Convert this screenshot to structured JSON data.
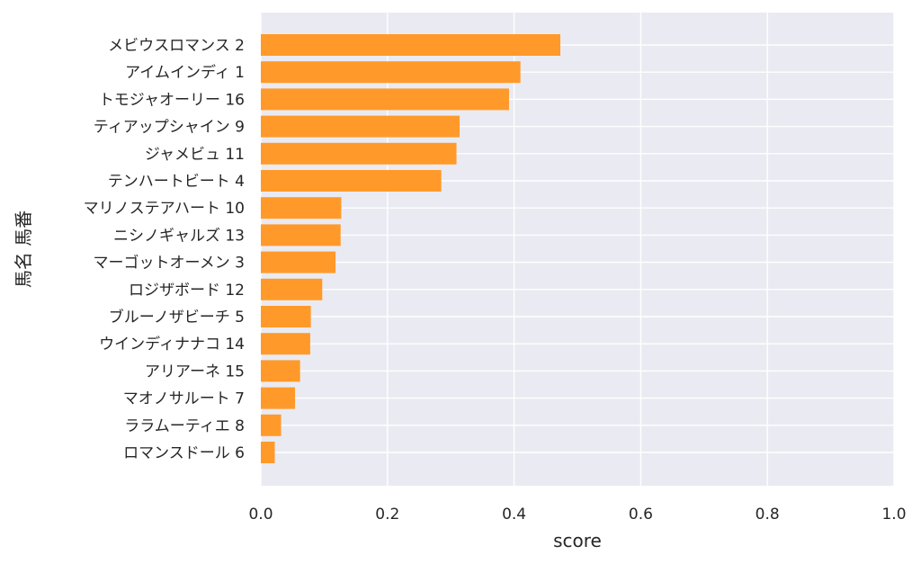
{
  "chart_data": {
    "type": "bar",
    "orientation": "horizontal",
    "categories": [
      "メビウスロマンス 2",
      "アイムインディ 1",
      "トモジャオーリー 16",
      "ティアップシャイン 9",
      "ジャメビュ 11",
      "テンハートビート 4",
      "マリノステアハート 10",
      "ニシノギャルズ 13",
      "マーゴットオーメン 3",
      "ロジザボード 12",
      "ブルーノザビーチ 5",
      "ウインディナナコ 14",
      "アリアーネ 15",
      "マオノサルート 7",
      "ララムーティエ 8",
      "ロマンスドール 6"
    ],
    "values": [
      0.473,
      0.41,
      0.392,
      0.314,
      0.309,
      0.285,
      0.127,
      0.126,
      0.118,
      0.097,
      0.079,
      0.078,
      0.062,
      0.054,
      0.032,
      0.022
    ],
    "xlabel": "score",
    "ylabel": "馬名 馬番",
    "xlim": [
      0,
      1
    ],
    "xticks": [
      "0.0",
      "0.2",
      "0.4",
      "0.6",
      "0.8",
      "1.0"
    ],
    "grid": true,
    "bar_color": "#ff9a2a",
    "background_color": "#eaeaf2"
  }
}
